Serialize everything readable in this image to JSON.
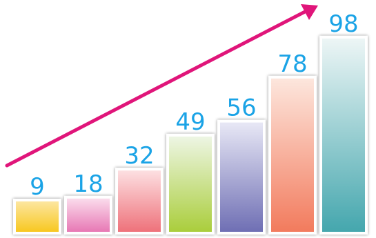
{
  "chart_data": {
    "type": "bar",
    "categories": [
      "",
      "",
      "",
      "",
      "",
      "",
      ""
    ],
    "values": [
      9,
      18,
      32,
      49,
      56,
      78,
      98
    ],
    "data_labels": [
      "9",
      "18",
      "32",
      "49",
      "56",
      "78",
      "98"
    ],
    "title": "",
    "xlabel": "",
    "ylabel": "",
    "ylim": [
      0,
      100
    ],
    "grid": false,
    "legend": "none",
    "label_color": "#1aa3e6",
    "trend_arrow_color": "#e0157a",
    "bar_colors": [
      [
        "#fde7a6",
        "#f7c61b"
      ],
      [
        "#fbe0ee",
        "#e674b2"
      ],
      [
        "#fde2e4",
        "#ee6f78"
      ],
      [
        "#eef6e6",
        "#a9cd39"
      ],
      [
        "#e9e9f6",
        "#6d6db3"
      ],
      [
        "#fde7de",
        "#f27a5c"
      ],
      [
        "#eef6f6",
        "#43a6ad"
      ]
    ]
  }
}
